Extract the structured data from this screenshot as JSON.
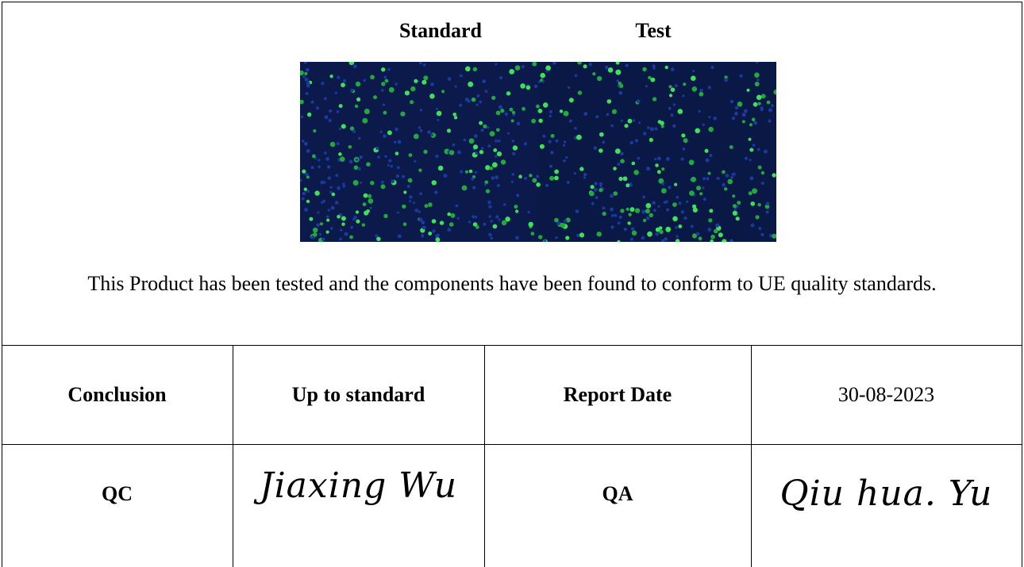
{
  "header": {
    "left_label": "Standard",
    "right_label": "Test"
  },
  "statement": "This Product has been tested and the components have been found to conform to UE quality standards.",
  "table": {
    "rows": [
      [
        "Conclusion",
        "Up to standard",
        "Report Date",
        "30-08-2023"
      ],
      [
        "QC",
        "Jiaxing Wu",
        "QA",
        "Qiu hua. Yu"
      ]
    ]
  }
}
